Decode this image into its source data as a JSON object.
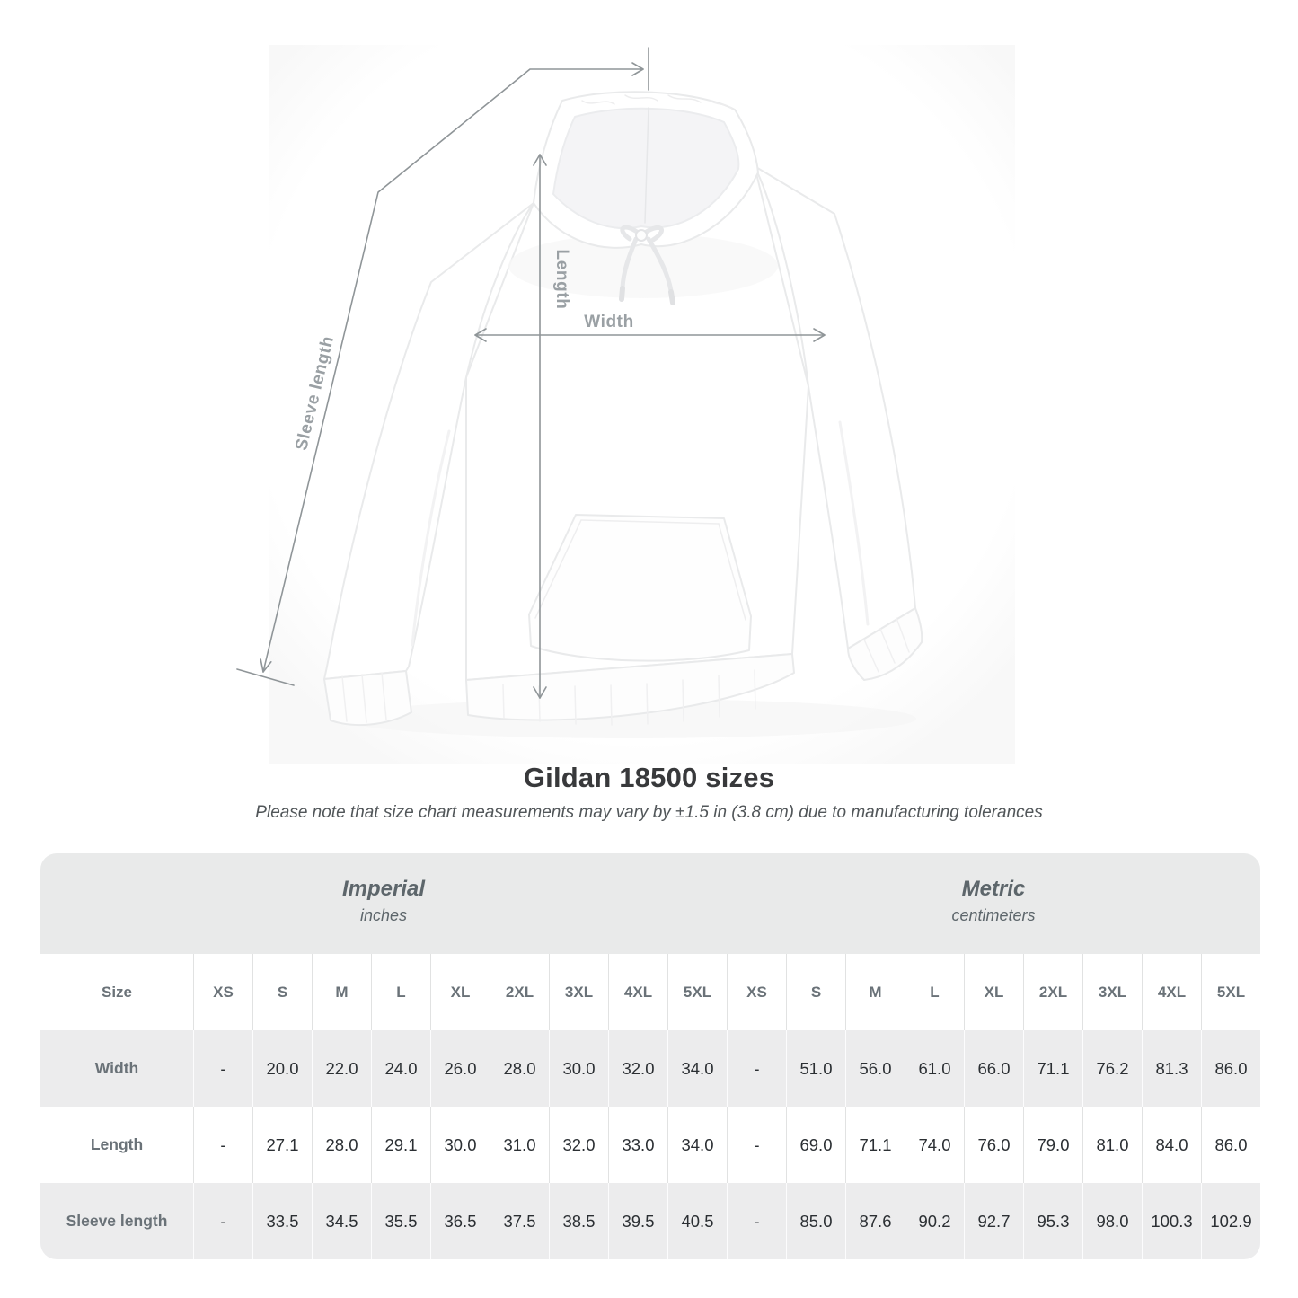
{
  "diagram": {
    "width_label": "Width",
    "length_label": "Length",
    "sleeve_label": "Sleeve length",
    "line_color": "#8f9598",
    "label_color": "#9aa0a4"
  },
  "heading": {
    "title": "Gildan 18500 sizes",
    "subtitle": "Please note that size chart measurements may vary by ±1.5 in (3.8 cm) due to manufacturing tolerances"
  },
  "chart_data": {
    "type": "table",
    "title": "Gildan 18500 sizes",
    "unit_groups": [
      {
        "label": "Imperial",
        "unit": "inches"
      },
      {
        "label": "Metric",
        "unit": "centimeters"
      }
    ],
    "size_column_header": "Size",
    "sizes": [
      "XS",
      "S",
      "M",
      "L",
      "XL",
      "2XL",
      "3XL",
      "4XL",
      "5XL"
    ],
    "rows": [
      {
        "label": "Width",
        "imperial": [
          "-",
          "20.0",
          "22.0",
          "24.0",
          "26.0",
          "28.0",
          "30.0",
          "32.0",
          "34.0"
        ],
        "metric": [
          "-",
          "51.0",
          "56.0",
          "61.0",
          "66.0",
          "71.1",
          "76.2",
          "81.3",
          "86.0"
        ]
      },
      {
        "label": "Length",
        "imperial": [
          "-",
          "27.1",
          "28.0",
          "29.1",
          "30.0",
          "31.0",
          "32.0",
          "33.0",
          "34.0"
        ],
        "metric": [
          "-",
          "69.0",
          "71.1",
          "74.0",
          "76.0",
          "79.0",
          "81.0",
          "84.0",
          "86.0"
        ]
      },
      {
        "label": "Sleeve length",
        "imperial": [
          "-",
          "33.5",
          "34.5",
          "35.5",
          "36.5",
          "37.5",
          "38.5",
          "39.5",
          "40.5"
        ],
        "metric": [
          "-",
          "85.0",
          "87.6",
          "90.2",
          "92.7",
          "95.3",
          "98.0",
          "100.3",
          "102.9"
        ]
      }
    ]
  },
  "colors": {
    "band_bg": "#e9eaea",
    "row_alt_bg": "#ececed",
    "value_text": "#2b2f33",
    "muted_text": "#6a7278"
  }
}
